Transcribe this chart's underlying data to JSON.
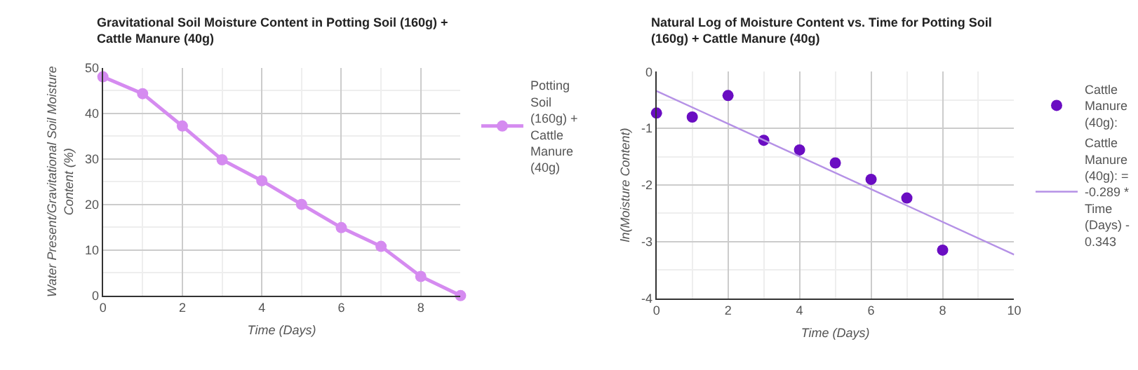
{
  "chart_data": [
    {
      "type": "line",
      "title": "Gravitational Soil Moisture Content in Potting Soil (160g) + Cattle Manure (40g)",
      "xlabel": "Time (Days)",
      "ylabel": "Water Present/Gravitational Soil Moisture Content (%)",
      "x": [
        0,
        1,
        2,
        3,
        4,
        5,
        6,
        7,
        8,
        9
      ],
      "series": [
        {
          "name": "Potting Soil (160g) + Cattle Manure (40g)",
          "color": "#d58bf0",
          "values": [
            48,
            44.3,
            37.2,
            29.8,
            25.2,
            20,
            14.9,
            10.8,
            4.2,
            0
          ]
        }
      ],
      "xlim": [
        0,
        9
      ],
      "xticks": [
        0,
        2,
        4,
        6,
        8
      ],
      "ylim": [
        0,
        50
      ],
      "yticks": [
        0,
        10,
        20,
        30,
        40,
        50
      ],
      "grid": true,
      "legend": "right",
      "marker": "circle",
      "line_style": "solid"
    },
    {
      "type": "scatter",
      "title": "Natural Log of Moisture Content vs. Time for Potting Soil (160g) + Cattle Manure (40g)",
      "xlabel": "Time (Days)",
      "ylabel": "ln(Moisture Content)",
      "x": [
        0,
        1,
        2,
        3,
        4,
        5,
        6,
        7,
        8
      ],
      "series": [
        {
          "name": "Cattle Manure (40g):",
          "color": "#6a0dc2",
          "values": [
            -0.73,
            -0.8,
            -0.42,
            -1.21,
            -1.38,
            -1.61,
            -1.9,
            -2.23,
            -3.15
          ]
        },
        {
          "type": "line",
          "marker": "none",
          "name": "Cattle Manure (40g): = -0.289 * Time (Days) - 0.343",
          "color": "#b591e6",
          "x": [
            0,
            10
          ],
          "values": [
            -0.34,
            -3.23
          ]
        }
      ],
      "xlim": [
        0,
        10
      ],
      "xticks": [
        0,
        2,
        4,
        6,
        8,
        10
      ],
      "ylim": [
        -4,
        0
      ],
      "yticks": [
        -4,
        -3,
        -2,
        -1,
        0
      ],
      "grid": true,
      "legend": "right",
      "marker": "circle"
    }
  ]
}
